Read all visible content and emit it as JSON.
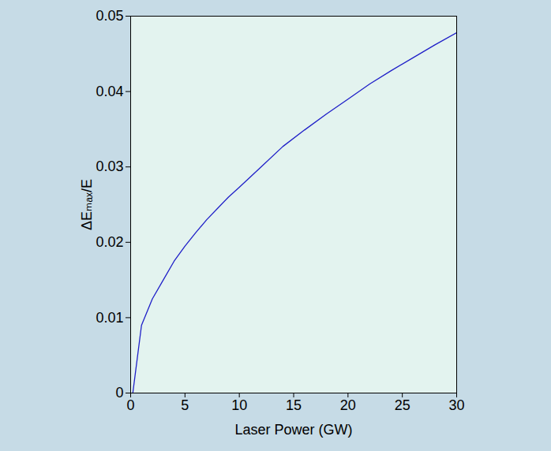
{
  "chart_data": {
    "type": "line",
    "x_label": "Laser Power (GW)",
    "y_label": "ΔEₘₐₓ/E",
    "series": [
      {
        "name": null,
        "color": "#1f1fc8",
        "line_style": "solid",
        "marker": "none",
        "x": [
          0.2,
          1,
          2,
          3,
          4,
          5,
          6,
          7,
          8,
          9,
          10,
          12,
          14,
          16,
          18,
          20,
          22,
          24,
          26,
          28,
          30
        ],
        "values": [
          0,
          0.009,
          0.0125,
          0.015,
          0.0175,
          0.0195,
          0.0213,
          0.023,
          0.0245,
          0.026,
          0.0273,
          0.03,
          0.0327,
          0.0349,
          0.037,
          0.039,
          0.041,
          0.0428,
          0.0445,
          0.0462,
          0.0478
        ]
      }
    ],
    "xlim": [
      0,
      30
    ],
    "xticks": [
      0,
      5,
      10,
      15,
      20,
      25,
      30
    ],
    "ylim": [
      0,
      0.05
    ],
    "yticks": [
      0,
      0.01,
      0.02,
      0.03,
      0.04,
      0.05
    ],
    "grid": false
  }
}
